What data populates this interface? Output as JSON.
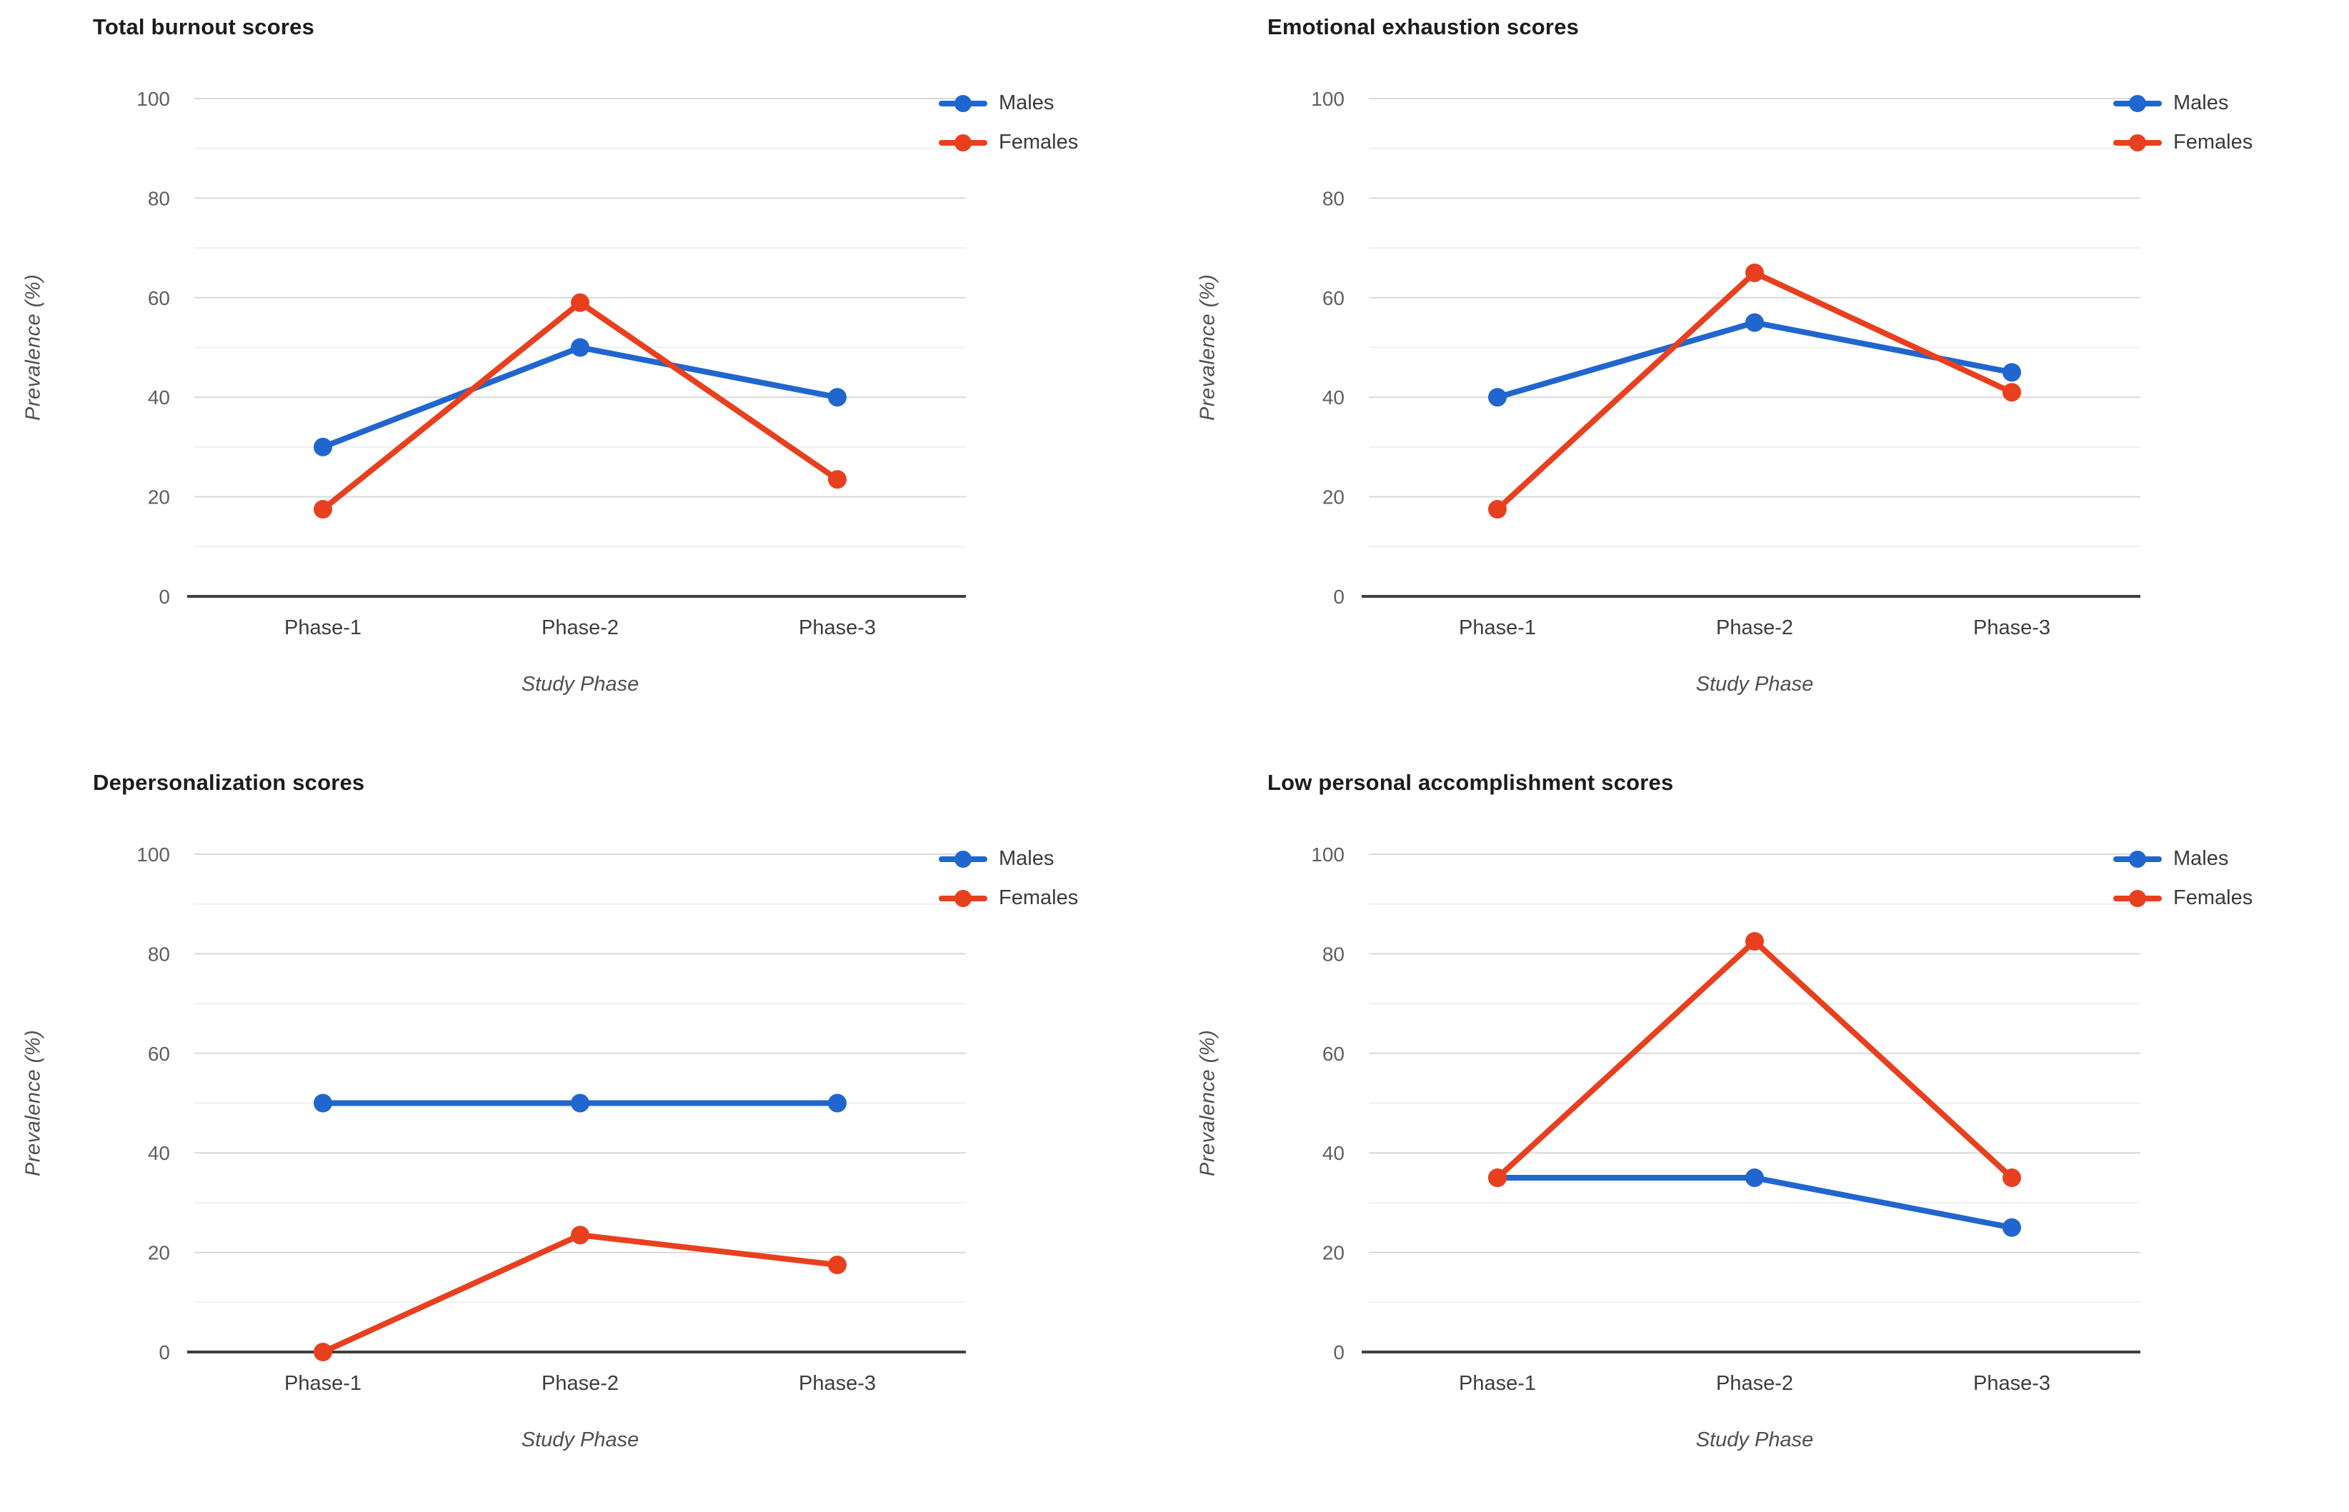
{
  "colors": {
    "males": "#2166cf",
    "females": "#e8401f",
    "grid_major": "#d9d9d9",
    "grid_minor": "#efefef",
    "axis_line": "#404040",
    "background": "#ffffff"
  },
  "chart_data": [
    {
      "type": "line",
      "title": "Total burnout scores",
      "xlabel": "Study Phase",
      "ylabel": "Prevalence (%)",
      "categories": [
        "Phase-1",
        "Phase-2",
        "Phase-3"
      ],
      "ylim": [
        0,
        100
      ],
      "yticks": [
        0,
        20,
        40,
        60,
        80,
        100
      ],
      "minor_gridlines": [
        10,
        30,
        50,
        70,
        90
      ],
      "grid": "on",
      "legend_position": "right-top",
      "series": [
        {
          "name": "Males",
          "color": "#2166cf",
          "values": [
            30,
            50,
            40
          ]
        },
        {
          "name": "Females",
          "color": "#e8401f",
          "values": [
            17.5,
            59,
            23.5
          ]
        }
      ]
    },
    {
      "type": "line",
      "title": "Emotional exhaustion scores",
      "xlabel": "Study Phase",
      "ylabel": "Prevalence (%)",
      "categories": [
        "Phase-1",
        "Phase-2",
        "Phase-3"
      ],
      "ylim": [
        0,
        100
      ],
      "yticks": [
        0,
        20,
        40,
        60,
        80,
        100
      ],
      "minor_gridlines": [
        10,
        30,
        50,
        70,
        90
      ],
      "grid": "on",
      "legend_position": "right-top",
      "series": [
        {
          "name": "Males",
          "color": "#2166cf",
          "values": [
            40,
            55,
            45
          ]
        },
        {
          "name": "Females",
          "color": "#e8401f",
          "values": [
            17.5,
            65,
            41
          ]
        }
      ]
    },
    {
      "type": "line",
      "title": "Depersonalization scores",
      "xlabel": "Study Phase",
      "ylabel": "Prevalence (%)",
      "categories": [
        "Phase-1",
        "Phase-2",
        "Phase-3"
      ],
      "ylim": [
        0,
        100
      ],
      "yticks": [
        0,
        20,
        40,
        60,
        80,
        100
      ],
      "minor_gridlines": [
        10,
        30,
        50,
        70,
        90
      ],
      "grid": "on",
      "legend_position": "right-top",
      "series": [
        {
          "name": "Males",
          "color": "#2166cf",
          "values": [
            50,
            50,
            50
          ]
        },
        {
          "name": "Females",
          "color": "#e8401f",
          "values": [
            0,
            23.5,
            17.5
          ]
        }
      ]
    },
    {
      "type": "line",
      "title": "Low personal accomplishment scores",
      "xlabel": "Study Phase",
      "ylabel": "Prevalence (%)",
      "categories": [
        "Phase-1",
        "Phase-2",
        "Phase-3"
      ],
      "ylim": [
        0,
        100
      ],
      "yticks": [
        0,
        20,
        40,
        60,
        80,
        100
      ],
      "minor_gridlines": [
        10,
        30,
        50,
        70,
        90
      ],
      "grid": "on",
      "legend_position": "right-top",
      "series": [
        {
          "name": "Males",
          "color": "#2166cf",
          "values": [
            35,
            35,
            25
          ]
        },
        {
          "name": "Females",
          "color": "#e8401f",
          "values": [
            35,
            82.5,
            35
          ]
        }
      ]
    }
  ]
}
